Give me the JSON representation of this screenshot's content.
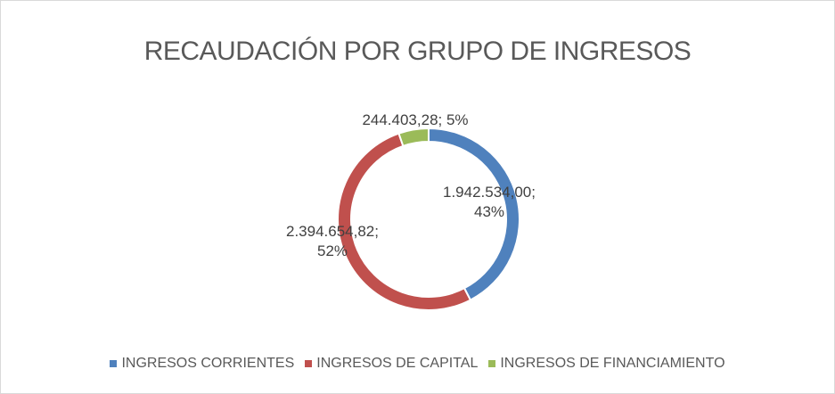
{
  "chart_data": {
    "type": "donut",
    "title": "RECAUDACIÓN POR GRUPO DE INGRESOS",
    "categories": [
      "INGRESOS CORRIENTES",
      "INGRESOS DE CAPITAL",
      "INGRESOS DE FINANCIAMIENTO"
    ],
    "values": [
      1942534.0,
      2394654.82,
      244403.28
    ],
    "value_labels": [
      "1.942.534,00; 43%",
      "2.394.654,82; 52%",
      "244.403,28; 5%"
    ],
    "colors": [
      "#4f81bd",
      "#c0504d",
      "#9bbb59"
    ],
    "legend": "bottom"
  }
}
